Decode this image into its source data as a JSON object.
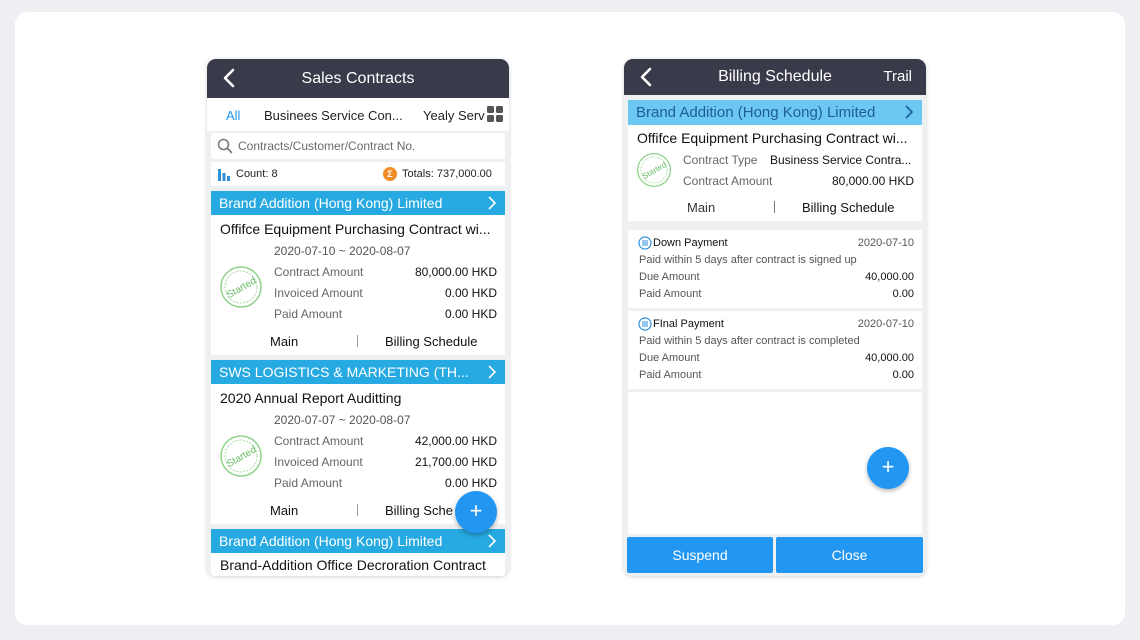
{
  "left": {
    "title": "Sales Contracts",
    "tabs": [
      "All",
      "Businees Service Con...",
      "Yealy Servi"
    ],
    "search": {
      "placeholder": "Contracts/Customer/Contract No."
    },
    "summary": {
      "count": "Count: 8",
      "totals": "Totals: 737,000.00"
    },
    "contracts": [
      {
        "customer": "Brand Addition (Hong Kong) Limited",
        "title": "Offifce Equipment Purchasing Contract wi...",
        "period": "2020-07-10 ~ 2020-08-07",
        "stamp": "Started",
        "rows": [
          {
            "label": "Contract Amount",
            "value": "80,000.00 HKD"
          },
          {
            "label": "Invoiced Amount",
            "value": "0.00 HKD"
          },
          {
            "label": "Paid Amount",
            "value": "0.00 HKD"
          }
        ],
        "links": {
          "main": "Main",
          "billing": "Billing Schedule"
        }
      },
      {
        "customer": "SWS LOGISTICS & MARKETING (TH...",
        "title": "2020 Annual Report Auditting",
        "period": "2020-07-07 ~ 2020-08-07",
        "stamp": "Started",
        "rows": [
          {
            "label": "Contract Amount",
            "value": "42,000.00 HKD"
          },
          {
            "label": "Invoiced Amount",
            "value": "21,700.00 HKD"
          },
          {
            "label": "Paid Amount",
            "value": "0.00 HKD"
          }
        ],
        "links": {
          "main": "Main",
          "billing": "Billing Sche"
        }
      },
      {
        "customer": "Brand Addition (Hong Kong) Limited",
        "title": "Brand-Addition Office Decroration Contract"
      }
    ],
    "fab": "+"
  },
  "right": {
    "title": "Billing Schedule",
    "trail": "Trail",
    "customer": "Brand Addition (Hong Kong) Limited",
    "contract_title": "Offifce Equipment Purchasing Contract wi...",
    "stamp": "Started",
    "info": [
      {
        "label": "Contract Type",
        "value": "Business Service Contra..."
      },
      {
        "label": "Contract Amount",
        "value": "80,000.00 HKD"
      }
    ],
    "links": {
      "main": "Main",
      "billing": "Billing Schedule"
    },
    "bills": [
      {
        "name": "Down Payment",
        "date": "2020-07-10",
        "desc": "Paid within 5 days after contract is signed up",
        "due_label": "Due Amount",
        "due": "40,000.00",
        "paid_label": "Paid Amount",
        "paid": "0.00"
      },
      {
        "name": "FInal Payment",
        "date": "2020-07-10",
        "desc": "Paid within 5 days after contract is completed",
        "due_label": "Due Amount",
        "due": "40,000.00",
        "paid_label": "Paid Amount",
        "paid": "0.00"
      }
    ],
    "fab": "+",
    "buttons": {
      "suspend": "Suspend",
      "close": "Close"
    }
  },
  "colors": {
    "titlebar": "#3a3b4a",
    "accent": "#2196f3",
    "header": "#27a9e1",
    "stamp": "#7cc576"
  },
  "icons": [
    "back-icon",
    "grid-icon",
    "search-icon",
    "bar-chart-icon",
    "sigma-icon",
    "chevron-right-icon",
    "started-stamp-icon",
    "list-icon",
    "plus-icon"
  ]
}
